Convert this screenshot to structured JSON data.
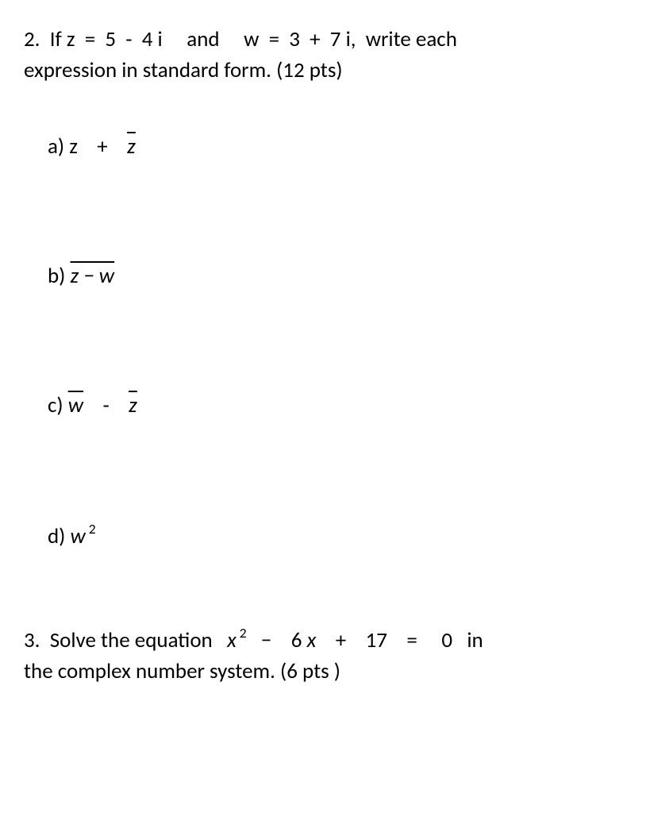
{
  "q2": {
    "prompt_line1_a": "2.  If z  =  5  -  4 i     and     w  =  3  +  7 i,  write each",
    "prompt_line2": "expression in standard form.  (12 pts)",
    "parts": {
      "a": {
        "label": "a) z",
        "plus": "    +    ",
        "zbar": "z̄"
      },
      "b": {
        "label": "b) ",
        "expr": "z − w"
      },
      "c": {
        "label": "c)  ",
        "wbar": "w̄",
        "mid": "    -    ",
        "zbar": "z̄"
      },
      "d": {
        "label": "d)  ",
        "w": "w",
        "exp": " 2"
      }
    }
  },
  "q3": {
    "line1_a": "3.  Solve the equation   ",
    "x": "x",
    "exp": " 2",
    "line1_b": "   −    6 ",
    "x2": "x",
    "line1_c": "    +    17    =     0   in",
    "line2": "the complex number system.  (6 pts )"
  },
  "style": {
    "font_size_pt": 20,
    "text_color": "#000000",
    "background_color": "#ffffff"
  }
}
